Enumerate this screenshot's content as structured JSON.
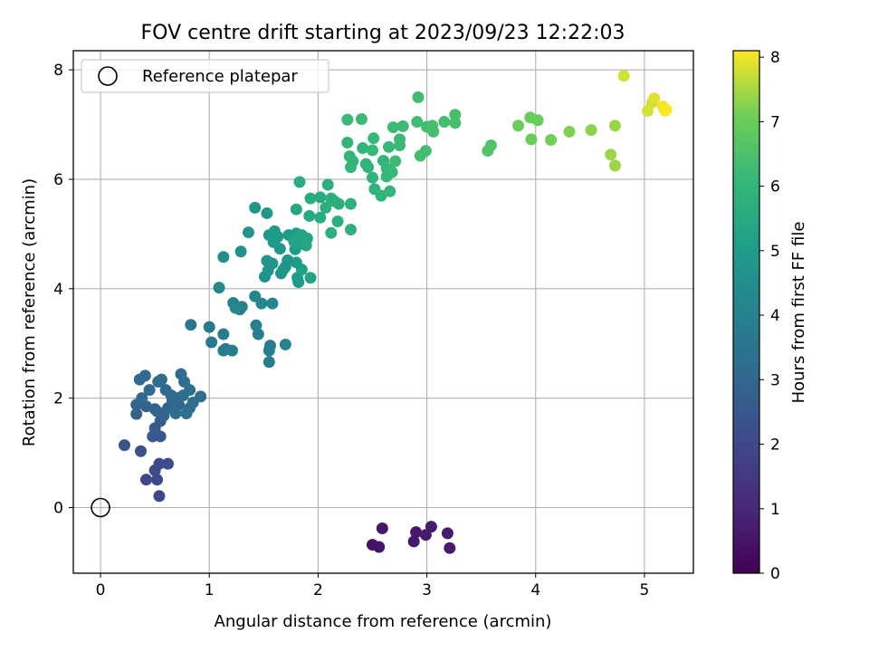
{
  "chart_data": {
    "type": "scatter",
    "title": "FOV centre drift starting at 2023/09/23 12:22:03",
    "xlabel": "Angular distance from reference (arcmin)",
    "ylabel": "Rotation from reference (arcmin)",
    "xlim": [
      -0.25,
      5.45
    ],
    "ylim": [
      -1.2,
      8.35
    ],
    "xticks": [
      0,
      1,
      2,
      3,
      4,
      5
    ],
    "yticks": [
      0,
      2,
      4,
      6,
      8
    ],
    "grid": true,
    "legend": {
      "position": "top-left",
      "entries": [
        "Reference platepar"
      ]
    },
    "reference_point": {
      "x": 0,
      "y": 0,
      "label": "Reference platepar",
      "marker": "open-circle"
    },
    "colorbar": {
      "label": "Hours from first FF file",
      "range": [
        0,
        8.1
      ],
      "ticks": [
        0,
        1,
        2,
        3,
        4,
        5,
        6,
        7,
        8
      ],
      "colormap": "viridis"
    },
    "points": [
      {
        "x": 2.5,
        "y": -0.68,
        "c": 0.5
      },
      {
        "x": 2.56,
        "y": -0.72,
        "c": 0.5
      },
      {
        "x": 2.59,
        "y": -0.38,
        "c": 0.6
      },
      {
        "x": 2.88,
        "y": -0.62,
        "c": 0.6
      },
      {
        "x": 2.9,
        "y": -0.45,
        "c": 0.6
      },
      {
        "x": 2.99,
        "y": -0.5,
        "c": 0.7
      },
      {
        "x": 3.04,
        "y": -0.35,
        "c": 0.7
      },
      {
        "x": 3.19,
        "y": -0.47,
        "c": 0.7
      },
      {
        "x": 3.21,
        "y": -0.74,
        "c": 0.7
      },
      {
        "x": 0.54,
        "y": 0.21,
        "c": 2.0
      },
      {
        "x": 0.52,
        "y": 0.51,
        "c": 2.0
      },
      {
        "x": 0.42,
        "y": 0.51,
        "c": 2.0
      },
      {
        "x": 0.5,
        "y": 0.68,
        "c": 2.1
      },
      {
        "x": 0.54,
        "y": 0.8,
        "c": 2.1
      },
      {
        "x": 0.62,
        "y": 0.8,
        "c": 2.2
      },
      {
        "x": 0.37,
        "y": 1.03,
        "c": 2.3
      },
      {
        "x": 0.22,
        "y": 1.14,
        "c": 2.4
      },
      {
        "x": 0.48,
        "y": 1.3,
        "c": 2.5
      },
      {
        "x": 0.55,
        "y": 1.3,
        "c": 2.5
      },
      {
        "x": 0.5,
        "y": 1.45,
        "c": 2.6
      },
      {
        "x": 0.55,
        "y": 1.58,
        "c": 2.7
      },
      {
        "x": 0.33,
        "y": 1.71,
        "c": 2.8
      },
      {
        "x": 0.42,
        "y": 1.85,
        "c": 2.8
      },
      {
        "x": 0.37,
        "y": 1.92,
        "c": 2.9
      },
      {
        "x": 0.33,
        "y": 1.88,
        "c": 2.9
      },
      {
        "x": 0.5,
        "y": 1.8,
        "c": 2.9
      },
      {
        "x": 0.58,
        "y": 1.68,
        "c": 2.9
      },
      {
        "x": 0.52,
        "y": 1.76,
        "c": 2.9
      },
      {
        "x": 0.62,
        "y": 1.82,
        "c": 3.0
      },
      {
        "x": 0.68,
        "y": 1.78,
        "c": 3.0
      },
      {
        "x": 0.72,
        "y": 1.88,
        "c": 3.0
      },
      {
        "x": 0.7,
        "y": 2.0,
        "c": 3.0
      },
      {
        "x": 0.66,
        "y": 1.95,
        "c": 3.0
      },
      {
        "x": 0.6,
        "y": 2.15,
        "c": 3.1
      },
      {
        "x": 0.45,
        "y": 2.15,
        "c": 3.1
      },
      {
        "x": 0.38,
        "y": 2.0,
        "c": 3.1
      },
      {
        "x": 0.36,
        "y": 2.34,
        "c": 3.1
      },
      {
        "x": 0.41,
        "y": 2.41,
        "c": 3.1
      },
      {
        "x": 0.53,
        "y": 2.3,
        "c": 3.2
      },
      {
        "x": 0.56,
        "y": 2.34,
        "c": 3.2
      },
      {
        "x": 0.65,
        "y": 2.05,
        "c": 3.2
      },
      {
        "x": 0.74,
        "y": 2.44,
        "c": 3.2
      },
      {
        "x": 0.77,
        "y": 2.3,
        "c": 3.3
      },
      {
        "x": 0.76,
        "y": 2.05,
        "c": 3.3
      },
      {
        "x": 0.82,
        "y": 2.15,
        "c": 3.3
      },
      {
        "x": 0.85,
        "y": 1.92,
        "c": 3.3
      },
      {
        "x": 0.82,
        "y": 1.82,
        "c": 3.3
      },
      {
        "x": 0.79,
        "y": 1.72,
        "c": 3.3
      },
      {
        "x": 0.69,
        "y": 1.72,
        "c": 3.3
      },
      {
        "x": 0.92,
        "y": 2.03,
        "c": 3.3
      },
      {
        "x": 0.83,
        "y": 3.34,
        "c": 3.6
      },
      {
        "x": 1.0,
        "y": 3.3,
        "c": 3.7
      },
      {
        "x": 1.02,
        "y": 3.02,
        "c": 3.7
      },
      {
        "x": 1.13,
        "y": 2.87,
        "c": 3.8
      },
      {
        "x": 1.15,
        "y": 2.9,
        "c": 3.8
      },
      {
        "x": 1.21,
        "y": 2.87,
        "c": 3.8
      },
      {
        "x": 1.13,
        "y": 3.17,
        "c": 3.8
      },
      {
        "x": 1.43,
        "y": 3.33,
        "c": 3.9
      },
      {
        "x": 1.45,
        "y": 3.17,
        "c": 3.9
      },
      {
        "x": 1.55,
        "y": 2.87,
        "c": 3.9
      },
      {
        "x": 1.56,
        "y": 2.96,
        "c": 3.9
      },
      {
        "x": 1.55,
        "y": 2.66,
        "c": 3.9
      },
      {
        "x": 1.7,
        "y": 2.98,
        "c": 4.0
      },
      {
        "x": 1.22,
        "y": 3.74,
        "c": 4.1
      },
      {
        "x": 1.28,
        "y": 3.62,
        "c": 4.1
      },
      {
        "x": 1.3,
        "y": 3.67,
        "c": 4.1
      },
      {
        "x": 1.42,
        "y": 3.86,
        "c": 4.2
      },
      {
        "x": 1.48,
        "y": 3.73,
        "c": 4.2
      },
      {
        "x": 1.58,
        "y": 3.73,
        "c": 4.2
      },
      {
        "x": 1.09,
        "y": 4.02,
        "c": 4.3
      },
      {
        "x": 1.24,
        "y": 3.65,
        "c": 4.2
      },
      {
        "x": 1.13,
        "y": 4.58,
        "c": 4.5
      },
      {
        "x": 1.29,
        "y": 4.68,
        "c": 4.6
      },
      {
        "x": 1.36,
        "y": 5.03,
        "c": 4.7
      },
      {
        "x": 1.42,
        "y": 5.48,
        "c": 4.8
      },
      {
        "x": 1.53,
        "y": 5.38,
        "c": 4.8
      },
      {
        "x": 1.51,
        "y": 4.22,
        "c": 4.6
      },
      {
        "x": 1.54,
        "y": 4.33,
        "c": 4.7
      },
      {
        "x": 1.58,
        "y": 4.46,
        "c": 4.7
      },
      {
        "x": 1.53,
        "y": 4.51,
        "c": 4.7
      },
      {
        "x": 1.6,
        "y": 4.88,
        "c": 4.8
      },
      {
        "x": 1.55,
        "y": 4.98,
        "c": 4.9
      },
      {
        "x": 1.6,
        "y": 5.05,
        "c": 4.9
      },
      {
        "x": 1.63,
        "y": 4.95,
        "c": 4.9
      },
      {
        "x": 1.65,
        "y": 4.73,
        "c": 4.8
      },
      {
        "x": 1.66,
        "y": 4.28,
        "c": 4.7
      },
      {
        "x": 1.7,
        "y": 4.4,
        "c": 4.8
      },
      {
        "x": 1.72,
        "y": 4.52,
        "c": 4.8
      },
      {
        "x": 1.73,
        "y": 4.98,
        "c": 5.0
      },
      {
        "x": 1.77,
        "y": 4.93,
        "c": 5.0
      },
      {
        "x": 1.8,
        "y": 5.01,
        "c": 5.1
      },
      {
        "x": 1.79,
        "y": 4.72,
        "c": 5.0
      },
      {
        "x": 1.8,
        "y": 4.48,
        "c": 5.0
      },
      {
        "x": 1.81,
        "y": 4.2,
        "c": 5.0
      },
      {
        "x": 1.82,
        "y": 4.12,
        "c": 5.0
      },
      {
        "x": 1.85,
        "y": 4.35,
        "c": 5.1
      },
      {
        "x": 1.84,
        "y": 4.82,
        "c": 5.2
      },
      {
        "x": 1.85,
        "y": 4.98,
        "c": 5.3
      },
      {
        "x": 1.89,
        "y": 4.79,
        "c": 5.4
      },
      {
        "x": 1.9,
        "y": 4.92,
        "c": 5.4
      },
      {
        "x": 1.93,
        "y": 4.2,
        "c": 5.3
      },
      {
        "x": 1.78,
        "y": 4.86,
        "c": 5.3
      },
      {
        "x": 1.8,
        "y": 5.45,
        "c": 5.4
      },
      {
        "x": 1.83,
        "y": 5.95,
        "c": 5.6
      },
      {
        "x": 1.93,
        "y": 5.65,
        "c": 5.6
      },
      {
        "x": 1.92,
        "y": 5.33,
        "c": 5.5
      },
      {
        "x": 2.02,
        "y": 5.67,
        "c": 5.6
      },
      {
        "x": 2.02,
        "y": 5.3,
        "c": 5.6
      },
      {
        "x": 2.07,
        "y": 5.48,
        "c": 5.7
      },
      {
        "x": 2.09,
        "y": 5.9,
        "c": 5.7
      },
      {
        "x": 2.12,
        "y": 5.65,
        "c": 5.7
      },
      {
        "x": 2.15,
        "y": 5.6,
        "c": 5.7
      },
      {
        "x": 2.19,
        "y": 5.55,
        "c": 5.7
      },
      {
        "x": 2.12,
        "y": 5.02,
        "c": 5.7
      },
      {
        "x": 2.18,
        "y": 5.23,
        "c": 5.7
      },
      {
        "x": 2.3,
        "y": 5.55,
        "c": 5.8
      },
      {
        "x": 2.3,
        "y": 5.08,
        "c": 5.8
      },
      {
        "x": 1.59,
        "y": 4.85,
        "c": 4.9
      },
      {
        "x": 1.68,
        "y": 4.35,
        "c": 4.8
      },
      {
        "x": 2.27,
        "y": 6.67,
        "c": 6.0
      },
      {
        "x": 2.29,
        "y": 6.42,
        "c": 6.0
      },
      {
        "x": 2.3,
        "y": 6.22,
        "c": 6.0
      },
      {
        "x": 2.32,
        "y": 6.33,
        "c": 6.0
      },
      {
        "x": 2.27,
        "y": 7.09,
        "c": 6.2
      },
      {
        "x": 2.4,
        "y": 7.1,
        "c": 6.2
      },
      {
        "x": 2.41,
        "y": 6.57,
        "c": 6.0
      },
      {
        "x": 2.44,
        "y": 6.28,
        "c": 6.0
      },
      {
        "x": 2.46,
        "y": 6.22,
        "c": 6.0
      },
      {
        "x": 2.5,
        "y": 6.53,
        "c": 6.1
      },
      {
        "x": 2.51,
        "y": 6.75,
        "c": 6.1
      },
      {
        "x": 2.5,
        "y": 6.03,
        "c": 6.0
      },
      {
        "x": 2.52,
        "y": 5.82,
        "c": 5.9
      },
      {
        "x": 2.58,
        "y": 5.7,
        "c": 5.9
      },
      {
        "x": 2.6,
        "y": 6.34,
        "c": 6.0
      },
      {
        "x": 2.63,
        "y": 6.2,
        "c": 6.1
      },
      {
        "x": 2.63,
        "y": 6.05,
        "c": 6.1
      },
      {
        "x": 2.65,
        "y": 6.59,
        "c": 6.1
      },
      {
        "x": 2.66,
        "y": 5.78,
        "c": 6.0
      },
      {
        "x": 2.68,
        "y": 6.13,
        "c": 6.1
      },
      {
        "x": 2.69,
        "y": 6.95,
        "c": 6.2
      },
      {
        "x": 2.71,
        "y": 6.33,
        "c": 6.2
      },
      {
        "x": 2.75,
        "y": 6.62,
        "c": 6.2
      },
      {
        "x": 2.75,
        "y": 6.73,
        "c": 6.2
      },
      {
        "x": 2.78,
        "y": 6.97,
        "c": 6.2
      },
      {
        "x": 2.91,
        "y": 7.05,
        "c": 6.3
      },
      {
        "x": 2.92,
        "y": 7.5,
        "c": 6.3
      },
      {
        "x": 2.94,
        "y": 6.43,
        "c": 6.3
      },
      {
        "x": 2.99,
        "y": 6.52,
        "c": 6.3
      },
      {
        "x": 3.0,
        "y": 6.96,
        "c": 6.3
      },
      {
        "x": 3.06,
        "y": 6.87,
        "c": 6.4
      },
      {
        "x": 3.05,
        "y": 6.98,
        "c": 6.4
      },
      {
        "x": 3.16,
        "y": 7.05,
        "c": 6.4
      },
      {
        "x": 3.26,
        "y": 7.03,
        "c": 6.4
      },
      {
        "x": 3.26,
        "y": 7.18,
        "c": 6.4
      },
      {
        "x": 3.56,
        "y": 6.52,
        "c": 6.6
      },
      {
        "x": 3.59,
        "y": 6.62,
        "c": 6.6
      },
      {
        "x": 3.84,
        "y": 6.98,
        "c": 7.0
      },
      {
        "x": 3.95,
        "y": 7.13,
        "c": 7.0
      },
      {
        "x": 3.96,
        "y": 6.73,
        "c": 7.0
      },
      {
        "x": 4.02,
        "y": 7.08,
        "c": 7.0
      },
      {
        "x": 4.14,
        "y": 6.72,
        "c": 7.1
      },
      {
        "x": 4.31,
        "y": 6.87,
        "c": 7.2
      },
      {
        "x": 4.51,
        "y": 6.9,
        "c": 7.3
      },
      {
        "x": 4.69,
        "y": 6.45,
        "c": 7.4
      },
      {
        "x": 4.73,
        "y": 6.98,
        "c": 7.4
      },
      {
        "x": 4.73,
        "y": 6.25,
        "c": 7.4
      },
      {
        "x": 4.81,
        "y": 7.89,
        "c": 7.8
      },
      {
        "x": 5.03,
        "y": 7.25,
        "c": 7.8
      },
      {
        "x": 5.07,
        "y": 7.4,
        "c": 7.8
      },
      {
        "x": 5.09,
        "y": 7.48,
        "c": 7.9
      },
      {
        "x": 5.17,
        "y": 7.33,
        "c": 8.0
      },
      {
        "x": 5.19,
        "y": 7.25,
        "c": 8.1
      },
      {
        "x": 5.2,
        "y": 7.27,
        "c": 8.1
      }
    ]
  }
}
